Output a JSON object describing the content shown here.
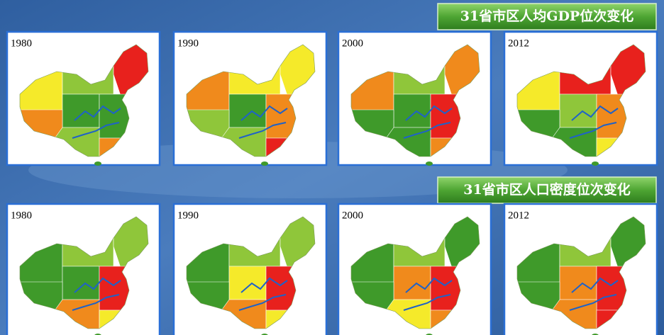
{
  "sections": [
    {
      "title": "31省市区人均GDP位次变化",
      "panels": [
        {
          "year": "1980"
        },
        {
          "year": "1990"
        },
        {
          "year": "2000"
        },
        {
          "year": "2012"
        }
      ]
    },
    {
      "title": "31省市区人口密度位次变化",
      "panels": [
        {
          "year": "1980"
        },
        {
          "year": "1990"
        },
        {
          "year": "2000"
        },
        {
          "year": "2012"
        }
      ]
    }
  ]
}
